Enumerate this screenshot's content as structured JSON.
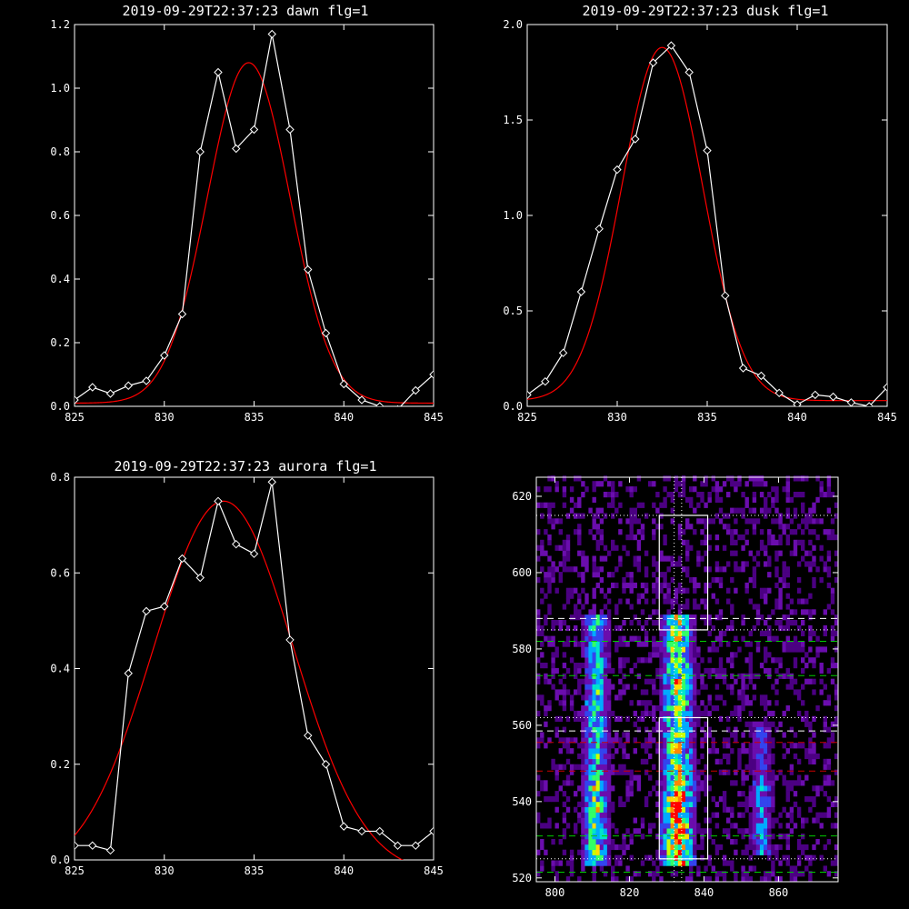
{
  "chart_data": [
    {
      "type": "line",
      "title": "2019-09-29T22:37:23 dawn flg=1",
      "xlim": [
        825,
        845
      ],
      "ylim": [
        0,
        1.2
      ],
      "xticks": [
        "825",
        "830",
        "835",
        "840",
        "845"
      ],
      "yticks": [
        "0.0",
        "0.2",
        "0.4",
        "0.6",
        "0.8",
        "1.0",
        "1.2"
      ],
      "series": [
        {
          "color": "#ffffff",
          "marker": "diamond",
          "x": [
            825,
            826,
            827,
            828,
            829,
            830,
            831,
            832,
            833,
            834,
            835,
            836,
            837,
            838,
            839,
            840,
            841,
            842,
            843,
            844,
            845
          ],
          "y": [
            0.02,
            0.06,
            0.04,
            0.065,
            0.08,
            0.16,
            0.29,
            0.8,
            1.05,
            0.81,
            0.87,
            1.17,
            0.87,
            0.43,
            0.23,
            0.07,
            0.02,
            0.0,
            -0.01,
            0.05,
            0.1
          ]
        },
        {
          "color": "#ff0000",
          "marker": "none",
          "fit": {
            "type": "gaussian",
            "amplitude": 1.07,
            "center": 834.7,
            "sigma": 2.3,
            "offset": 0.01
          }
        }
      ]
    },
    {
      "type": "line",
      "title": "2019-09-29T22:37:23 dusk flg=1",
      "xlim": [
        825,
        845
      ],
      "ylim": [
        0,
        2.0
      ],
      "xticks": [
        "825",
        "830",
        "835",
        "840",
        "845"
      ],
      "yticks": [
        "0.0",
        "0.5",
        "1.0",
        "1.5",
        "2.0"
      ],
      "series": [
        {
          "color": "#ffffff",
          "marker": "diamond",
          "x": [
            825,
            826,
            827,
            828,
            829,
            830,
            831,
            832,
            833,
            834,
            835,
            836,
            837,
            838,
            839,
            840,
            841,
            842,
            843,
            844,
            845
          ],
          "y": [
            0.06,
            0.13,
            0.28,
            0.6,
            0.93,
            1.24,
            1.4,
            1.8,
            1.89,
            1.75,
            1.34,
            0.58,
            0.2,
            0.16,
            0.07,
            0.01,
            0.06,
            0.05,
            0.02,
            0.0,
            0.1
          ]
        },
        {
          "color": "#ff0000",
          "marker": "none",
          "fit": {
            "type": "gaussian",
            "amplitude": 1.85,
            "center": 832.5,
            "sigma": 2.25,
            "offset": 0.03
          }
        }
      ]
    },
    {
      "type": "line",
      "title": "2019-09-29T22:37:23 aurora flg=1",
      "xlim": [
        825,
        845
      ],
      "ylim": [
        0,
        0.8
      ],
      "xticks": [
        "825",
        "830",
        "835",
        "840",
        "845"
      ],
      "yticks": [
        "0.0",
        "0.2",
        "0.4",
        "0.6",
        "0.8"
      ],
      "series": [
        {
          "color": "#ffffff",
          "marker": "diamond",
          "x": [
            825,
            826,
            827,
            828,
            829,
            830,
            831,
            832,
            833,
            834,
            835,
            836,
            837,
            838,
            839,
            840,
            841,
            842,
            843,
            844,
            845
          ],
          "y": [
            0.03,
            0.03,
            0.02,
            0.39,
            0.52,
            0.53,
            0.63,
            0.59,
            0.75,
            0.66,
            0.64,
            0.79,
            0.46,
            0.26,
            0.2,
            0.07,
            0.06,
            0.06,
            0.03,
            0.03,
            0.06
          ]
        },
        {
          "color": "#ff0000",
          "marker": "none",
          "fit": {
            "type": "gaussian",
            "amplitude": 0.78,
            "center": 833.3,
            "sigma": 3.9,
            "offset": -0.03
          }
        }
      ]
    },
    {
      "type": "heatmap",
      "title": "",
      "xlim": [
        795,
        876
      ],
      "ylim": [
        519,
        625
      ],
      "xticks": [
        800,
        820,
        840,
        860
      ],
      "yticks": [
        520,
        540,
        560,
        580,
        600,
        620
      ],
      "colormap": [
        "#4b0082",
        "#6a0dad",
        "#3344ee",
        "#00aaff",
        "#00e5cc",
        "#33ff66",
        "#ccff00",
        "#ffdd00",
        "#ff8800",
        "#ff0000"
      ],
      "bright_bands": [
        {
          "x": [
            807,
            814
          ],
          "y": [
            522,
            588
          ],
          "intensity": 0.55
        },
        {
          "x": [
            828,
            837
          ],
          "y": [
            522,
            588
          ],
          "intensity": 0.8
        },
        {
          "x": [
            852,
            858
          ],
          "y": [
            525,
            560
          ],
          "intensity": 0.28
        }
      ],
      "boxes": [
        {
          "x": [
            828,
            841
          ],
          "y": [
            585,
            615
          ],
          "color": "#ffffff"
        },
        {
          "x": [
            828,
            841
          ],
          "y": [
            525,
            562
          ],
          "color": "#ffffff"
        }
      ],
      "vlines": [
        {
          "x": 832,
          "color": "#ffffff",
          "style": "dotted"
        },
        {
          "x": 834,
          "color": "#ffffff",
          "style": "dotted"
        }
      ],
      "hlines": [
        {
          "y": 615,
          "color": "#ffffff",
          "style": "dotted"
        },
        {
          "y": 588,
          "color": "#ffffff",
          "style": "dashed"
        },
        {
          "y": 585,
          "color": "#ffffff",
          "style": "dotted"
        },
        {
          "y": 582,
          "color": "#00cc00",
          "style": "dashed"
        },
        {
          "y": 573,
          "color": "#00cc00",
          "style": "dashed"
        },
        {
          "y": 562,
          "color": "#ffffff",
          "style": "dotted"
        },
        {
          "y": 558.5,
          "color": "#ffffff",
          "style": "dashed"
        },
        {
          "y": 555.5,
          "color": "#cc0000",
          "style": "dashed"
        },
        {
          "y": 548,
          "color": "#cc0000",
          "style": "dashed"
        },
        {
          "y": 531,
          "color": "#00cc00",
          "style": "dashed"
        },
        {
          "y": 525,
          "color": "#ffffff",
          "style": "dotted"
        },
        {
          "y": 521.5,
          "color": "#00cc00",
          "style": "dashed"
        }
      ]
    }
  ]
}
